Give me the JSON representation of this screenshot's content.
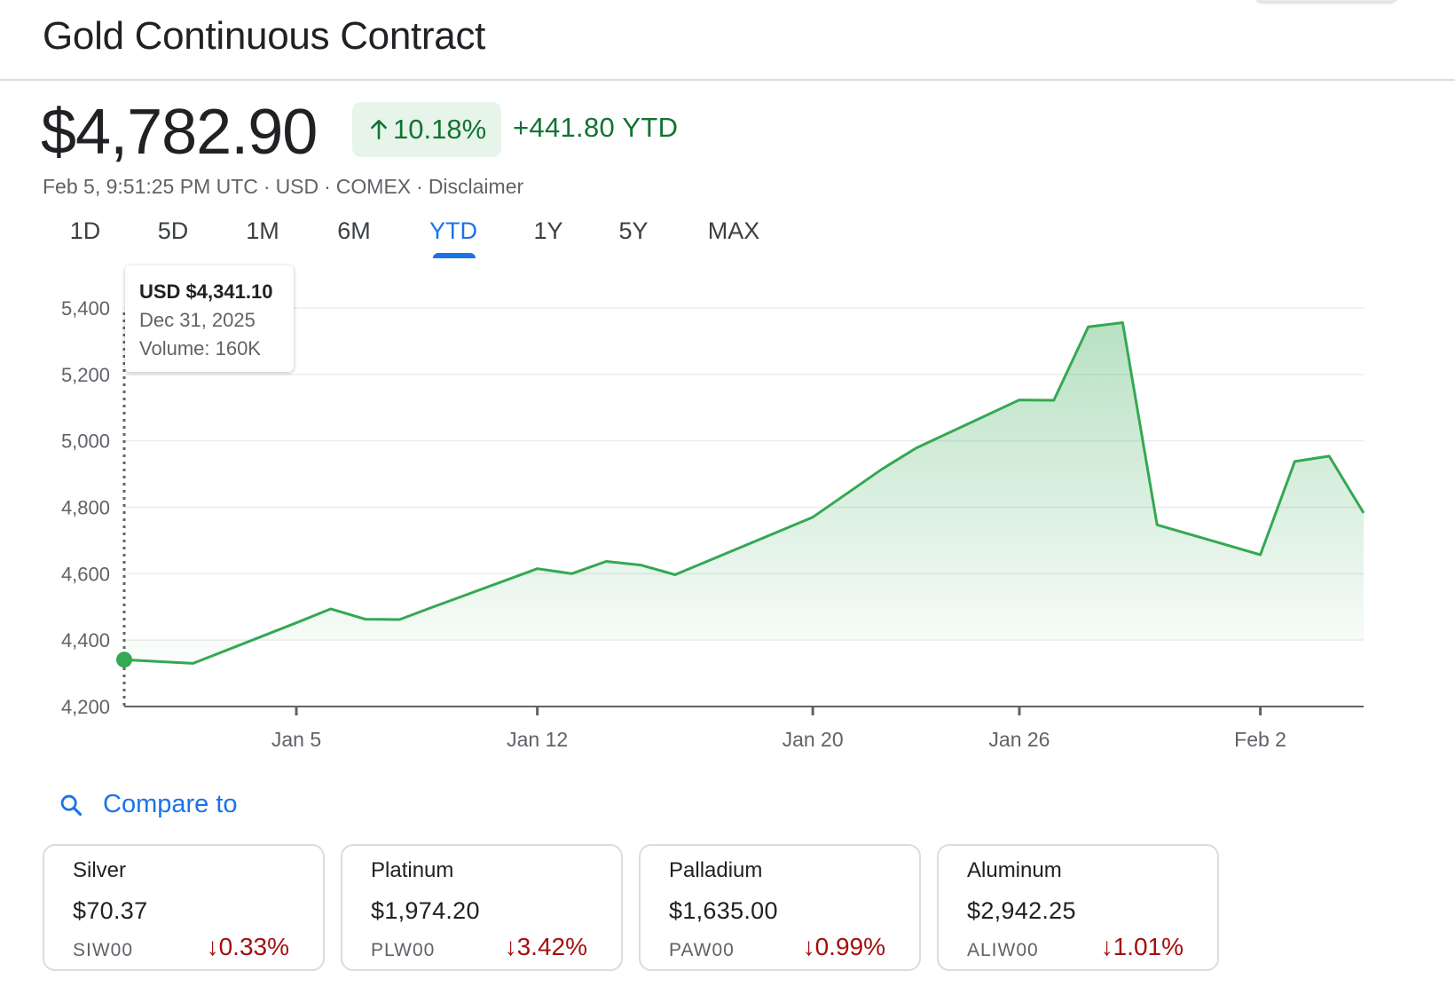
{
  "header": {
    "title": "Gold Continuous Contract"
  },
  "quote": {
    "price": "$4,782.90",
    "change_pct": "10.18%",
    "change_abs": "+441.80 YTD",
    "timestamp": "Feb 5, 9:51:25 PM UTC",
    "currency": "USD",
    "exchange": "COMEX",
    "disclaimer": "Disclaimer",
    "separator": "·"
  },
  "ranges": {
    "items": [
      "1D",
      "5D",
      "1M",
      "6M",
      "YTD",
      "1Y",
      "5Y",
      "MAX"
    ],
    "selected": "YTD"
  },
  "tooltip": {
    "price": "USD $4,341.10",
    "date": "Dec 31, 2025",
    "volume": "Volume: 160K"
  },
  "compare": {
    "label": "Compare to"
  },
  "related": [
    {
      "name": "Silver",
      "price": "$70.37",
      "symbol": "SIW00",
      "change": "0.33%",
      "direction": "down"
    },
    {
      "name": "Platinum",
      "price": "$1,974.20",
      "symbol": "PLW00",
      "change": "3.42%",
      "direction": "down"
    },
    {
      "name": "Palladium",
      "price": "$1,635.00",
      "symbol": "PAW00",
      "change": "0.99%",
      "direction": "down"
    },
    {
      "name": "Aluminum",
      "price": "$2,942.25",
      "symbol": "ALIW00",
      "change": "1.01%",
      "direction": "down"
    }
  ],
  "colors": {
    "positive": "#137333",
    "negative": "#a50e0e",
    "accent": "#1a73e8",
    "line": "#34a853"
  },
  "chart_data": {
    "type": "area",
    "x": [
      "2025-12-31",
      "2026-01-02",
      "2026-01-05",
      "2026-01-06",
      "2026-01-07",
      "2026-01-08",
      "2026-01-09",
      "2026-01-12",
      "2026-01-13",
      "2026-01-14",
      "2026-01-15",
      "2026-01-16",
      "2026-01-20",
      "2026-01-21",
      "2026-01-22",
      "2026-01-23",
      "2026-01-26",
      "2026-01-27",
      "2026-01-28",
      "2026-01-29",
      "2026-01-30",
      "2026-02-02",
      "2026-02-03",
      "2026-02-04",
      "2026-02-05"
    ],
    "values": [
      4341.1,
      4330,
      4452,
      4494,
      4463,
      4462,
      4501,
      4615,
      4600,
      4637,
      4626,
      4597,
      4770,
      4842,
      4914,
      4978,
      5123,
      5122,
      5343,
      5356,
      4747,
      4657,
      4938,
      4954,
      4782.9
    ],
    "x_ticks": [
      "Jan 5",
      "Jan 12",
      "Jan 20",
      "Jan 26",
      "Feb 2"
    ],
    "y_ticks": [
      4200,
      4400,
      4600,
      4800,
      5000,
      5200,
      5400
    ],
    "y_tick_labels": [
      "4,200",
      "4,400",
      "4,600",
      "4,800",
      "5,000",
      "5,200",
      "5,400"
    ],
    "ylim": [
      4200,
      5400
    ],
    "grid": true,
    "selected_index": 0
  }
}
